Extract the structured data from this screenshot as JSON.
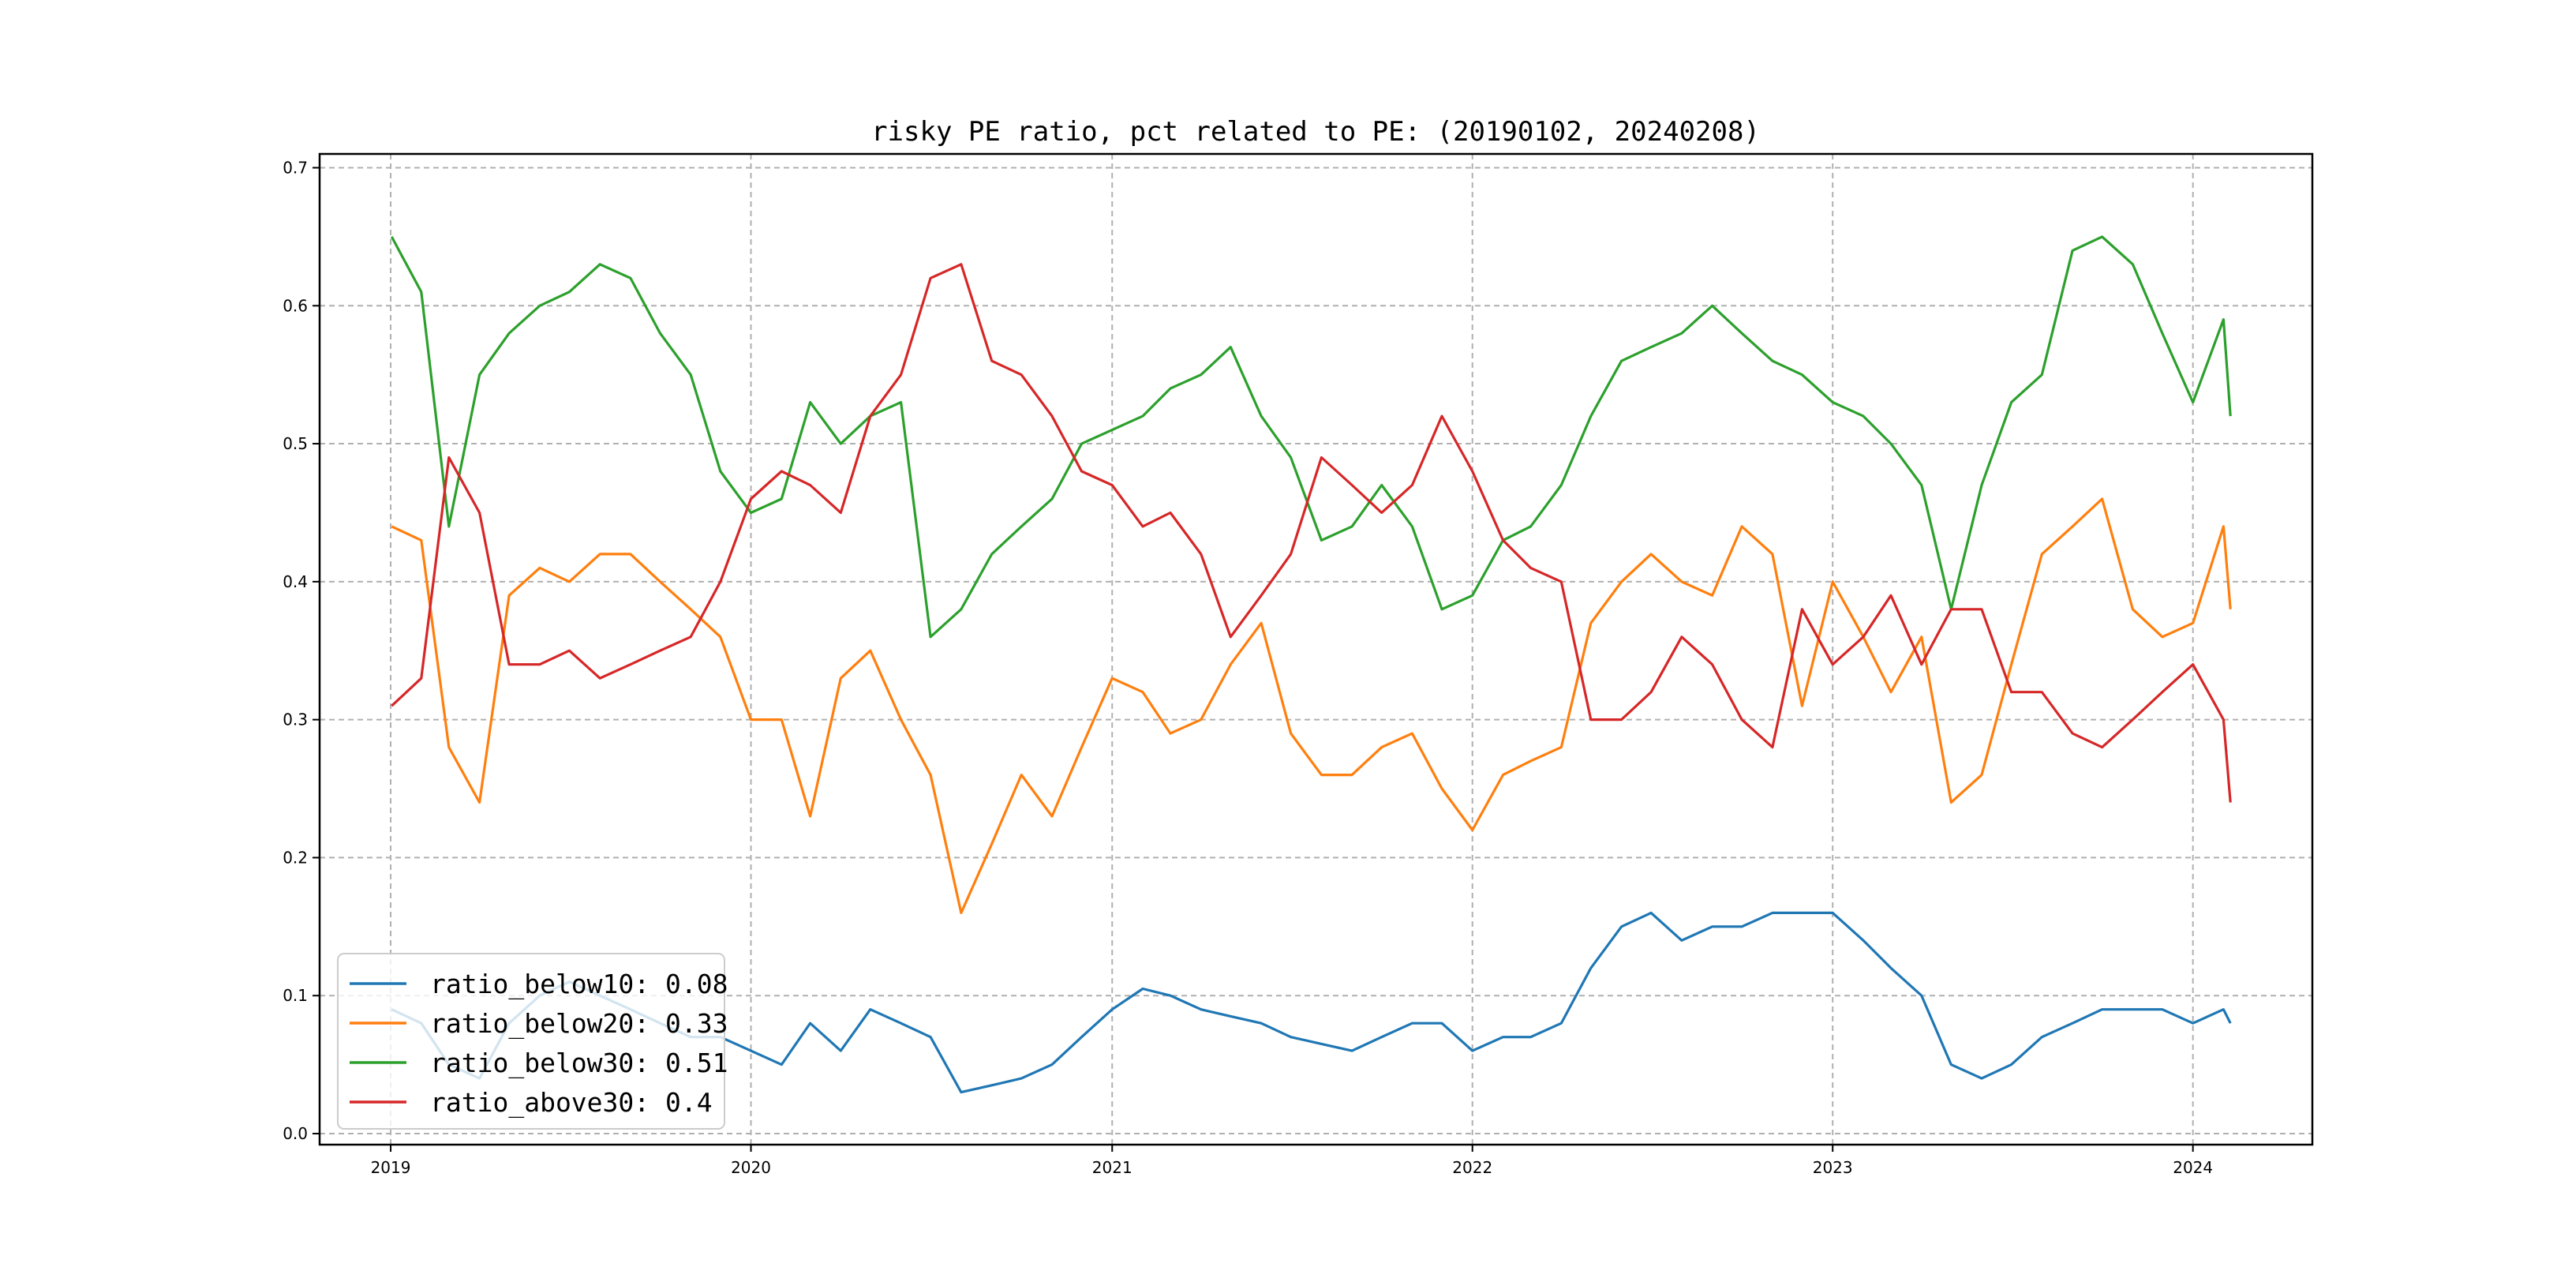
{
  "chart_data": {
    "type": "line",
    "title": "risky PE ratio, pct related to PE: (20190102, 20240208)",
    "xlabel": "",
    "ylabel": "",
    "x_ticks": [
      "2019",
      "2020",
      "2021",
      "2022",
      "2023",
      "2024"
    ],
    "y_ticks": [
      "0.0",
      "0.1",
      "0.2",
      "0.3",
      "0.4",
      "0.5",
      "0.6",
      "0.7"
    ],
    "xlim": [
      "2018-10-21",
      "2024-05-01"
    ],
    "ylim": [
      -0.008,
      0.71
    ],
    "grid": true,
    "grid_style": "dashed",
    "legend_position": "lower-left",
    "x": [
      "2019-01-02",
      "2019-02-01",
      "2019-03-01",
      "2019-04-01",
      "2019-05-01",
      "2019-06-01",
      "2019-07-01",
      "2019-08-01",
      "2019-09-01",
      "2019-10-01",
      "2019-11-01",
      "2019-12-01",
      "2020-01-01",
      "2020-02-01",
      "2020-03-01",
      "2020-04-01",
      "2020-05-01",
      "2020-06-01",
      "2020-07-01",
      "2020-08-01",
      "2020-09-01",
      "2020-10-01",
      "2020-11-01",
      "2020-12-01",
      "2021-01-01",
      "2021-02-01",
      "2021-03-01",
      "2021-04-01",
      "2021-05-01",
      "2021-06-01",
      "2021-07-01",
      "2021-08-01",
      "2021-09-01",
      "2021-10-01",
      "2021-11-01",
      "2021-12-01",
      "2022-01-01",
      "2022-02-01",
      "2022-03-01",
      "2022-04-01",
      "2022-05-01",
      "2022-06-01",
      "2022-07-01",
      "2022-08-01",
      "2022-09-01",
      "2022-10-01",
      "2022-11-01",
      "2022-12-01",
      "2023-01-01",
      "2023-02-01",
      "2023-03-01",
      "2023-04-01",
      "2023-05-01",
      "2023-06-01",
      "2023-07-01",
      "2023-08-01",
      "2023-09-01",
      "2023-10-01",
      "2023-11-01",
      "2023-12-01",
      "2024-01-01",
      "2024-02-01",
      "2024-02-08"
    ],
    "series": [
      {
        "name": "ratio_below10: 0.08",
        "color": "#1f77b4",
        "values": [
          0.09,
          0.08,
          0.05,
          0.04,
          0.08,
          0.1,
          0.11,
          0.1,
          0.09,
          0.08,
          0.07,
          0.07,
          0.06,
          0.05,
          0.08,
          0.06,
          0.09,
          0.08,
          0.07,
          0.03,
          0.035,
          0.04,
          0.05,
          0.07,
          0.09,
          0.105,
          0.1,
          0.09,
          0.085,
          0.08,
          0.07,
          0.065,
          0.06,
          0.07,
          0.08,
          0.08,
          0.06,
          0.07,
          0.07,
          0.08,
          0.12,
          0.15,
          0.16,
          0.14,
          0.15,
          0.15,
          0.16,
          0.16,
          0.16,
          0.14,
          0.12,
          0.1,
          0.05,
          0.04,
          0.05,
          0.07,
          0.08,
          0.09,
          0.09,
          0.09,
          0.08,
          0.09,
          0.08
        ]
      },
      {
        "name": "ratio_below20: 0.33",
        "color": "#ff7f0e",
        "values": [
          0.44,
          0.43,
          0.28,
          0.24,
          0.39,
          0.41,
          0.4,
          0.42,
          0.42,
          0.4,
          0.38,
          0.36,
          0.3,
          0.3,
          0.23,
          0.33,
          0.35,
          0.3,
          0.26,
          0.16,
          0.21,
          0.26,
          0.23,
          0.28,
          0.33,
          0.32,
          0.29,
          0.3,
          0.34,
          0.37,
          0.29,
          0.26,
          0.26,
          0.28,
          0.29,
          0.25,
          0.22,
          0.26,
          0.27,
          0.28,
          0.37,
          0.4,
          0.42,
          0.4,
          0.39,
          0.44,
          0.42,
          0.31,
          0.4,
          0.36,
          0.32,
          0.36,
          0.24,
          0.26,
          0.34,
          0.42,
          0.44,
          0.46,
          0.38,
          0.36,
          0.37,
          0.44,
          0.38
        ]
      },
      {
        "name": "ratio_below30: 0.51",
        "color": "#2ca02c",
        "values": [
          0.65,
          0.61,
          0.44,
          0.55,
          0.58,
          0.6,
          0.61,
          0.63,
          0.62,
          0.58,
          0.55,
          0.48,
          0.45,
          0.46,
          0.53,
          0.5,
          0.52,
          0.53,
          0.36,
          0.38,
          0.42,
          0.44,
          0.46,
          0.5,
          0.51,
          0.52,
          0.54,
          0.55,
          0.57,
          0.52,
          0.49,
          0.43,
          0.44,
          0.47,
          0.44,
          0.38,
          0.39,
          0.43,
          0.44,
          0.47,
          0.52,
          0.56,
          0.57,
          0.58,
          0.6,
          0.58,
          0.56,
          0.55,
          0.53,
          0.52,
          0.5,
          0.47,
          0.38,
          0.47,
          0.53,
          0.55,
          0.64,
          0.65,
          0.63,
          0.58,
          0.53,
          0.59,
          0.52
        ]
      },
      {
        "name": "ratio_above30: 0.4",
        "color": "#d62728",
        "values": [
          0.31,
          0.33,
          0.49,
          0.45,
          0.34,
          0.34,
          0.35,
          0.33,
          0.34,
          0.35,
          0.36,
          0.4,
          0.46,
          0.48,
          0.47,
          0.45,
          0.52,
          0.55,
          0.62,
          0.63,
          0.56,
          0.55,
          0.52,
          0.48,
          0.47,
          0.44,
          0.45,
          0.42,
          0.36,
          0.39,
          0.42,
          0.49,
          0.47,
          0.45,
          0.47,
          0.52,
          0.48,
          0.43,
          0.41,
          0.4,
          0.3,
          0.3,
          0.32,
          0.36,
          0.34,
          0.3,
          0.28,
          0.38,
          0.34,
          0.36,
          0.39,
          0.34,
          0.38,
          0.38,
          0.32,
          0.32,
          0.29,
          0.28,
          0.3,
          0.32,
          0.34,
          0.3,
          0.24
        ]
      }
    ]
  }
}
